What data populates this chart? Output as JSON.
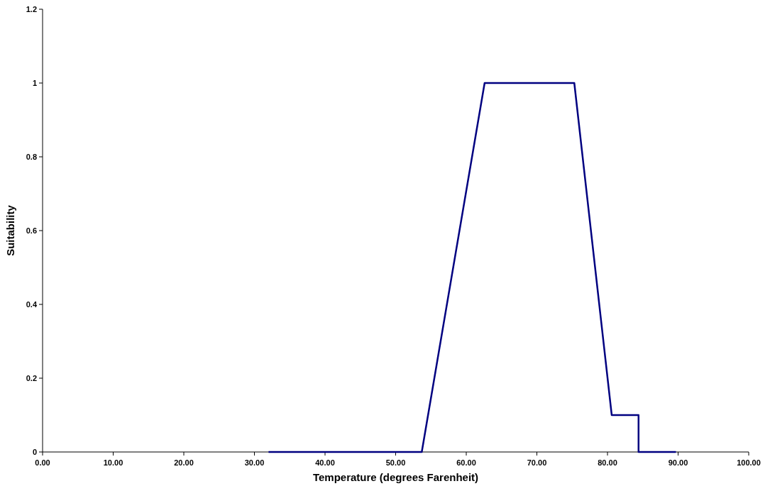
{
  "chart_data": {
    "type": "line",
    "xlabel": "Temperature (degrees Farenheit)",
    "ylabel": "Suitability",
    "series": [
      {
        "color": "#000080",
        "x": [
          32,
          53.7,
          62.6,
          75.3,
          80.6,
          84.4,
          84.4,
          89.7
        ],
        "values": [
          0,
          0,
          1,
          1,
          0.1,
          0.1,
          0,
          0
        ]
      }
    ],
    "xlim": [
      0,
      100
    ],
    "xticks": [
      {
        "value": 0,
        "label": "0.00"
      },
      {
        "value": 10,
        "label": "10.00"
      },
      {
        "value": 20,
        "label": "20.00"
      },
      {
        "value": 30,
        "label": "30.00"
      },
      {
        "value": 40,
        "label": "40.00"
      },
      {
        "value": 50,
        "label": "50.00"
      },
      {
        "value": 60,
        "label": "60.00"
      },
      {
        "value": 70,
        "label": "70.00"
      },
      {
        "value": 80,
        "label": "80.00"
      },
      {
        "value": 90,
        "label": "90.00"
      },
      {
        "value": 100,
        "label": "100.00"
      }
    ],
    "ylim": [
      0,
      1.2
    ],
    "yticks": [
      0,
      0.2,
      0.4,
      0.6,
      0.8,
      1,
      1.2
    ],
    "grid": false,
    "marker": "none",
    "line_style": "solid"
  }
}
